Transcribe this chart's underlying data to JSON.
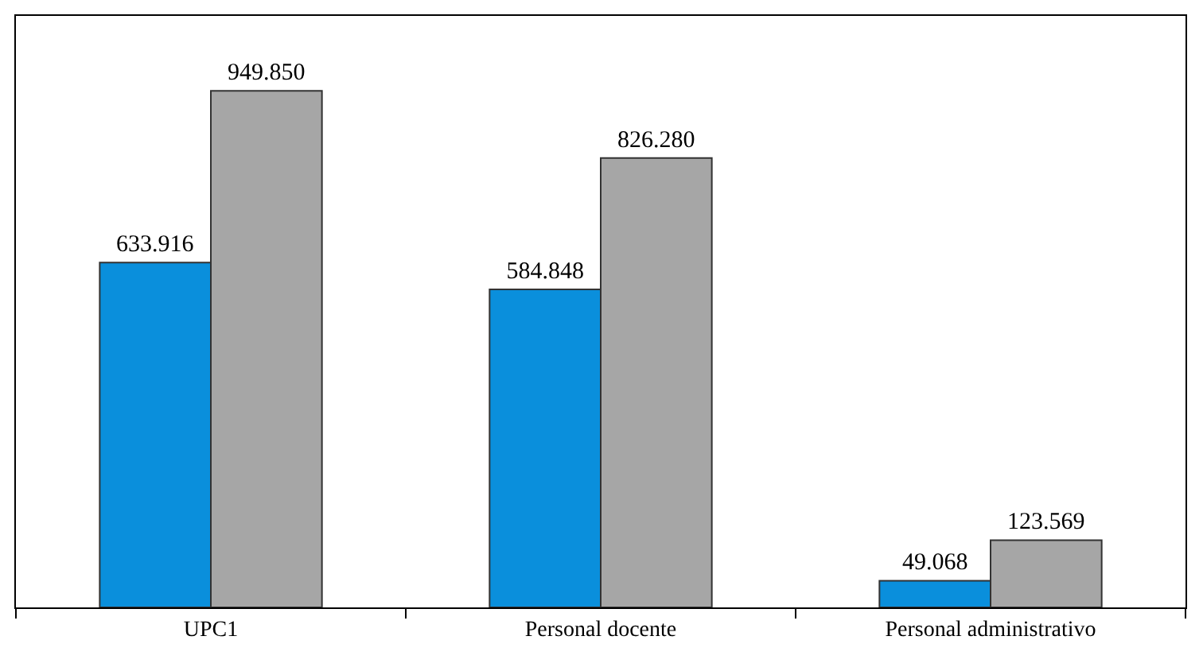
{
  "chart_data": {
    "type": "bar",
    "categories": [
      "UPC1",
      "Personal docente",
      "Personal administrativo"
    ],
    "series": [
      {
        "color": "#0a8fdc",
        "values": [
          633916,
          584848,
          49068
        ],
        "value_labels": [
          "633.916",
          "584.848",
          "49.068"
        ]
      },
      {
        "color": "#a6a6a6",
        "values": [
          949850,
          826280,
          123569
        ],
        "value_labels": [
          "949.850",
          "826.280",
          "123.569"
        ]
      }
    ],
    "grid": false
  }
}
